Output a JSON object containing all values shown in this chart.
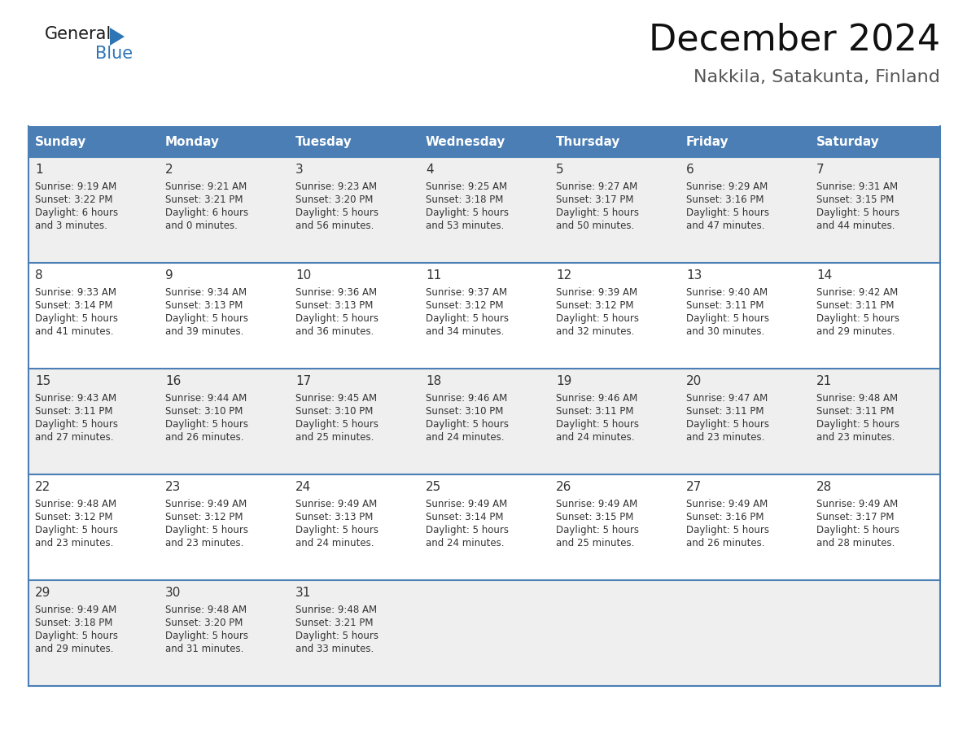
{
  "title": "December 2024",
  "subtitle": "Nakkila, Satakunta, Finland",
  "days_of_week": [
    "Sunday",
    "Monday",
    "Tuesday",
    "Wednesday",
    "Thursday",
    "Friday",
    "Saturday"
  ],
  "header_bg": "#4A7EB5",
  "header_text": "#FFFFFF",
  "row_bg_odd": "#EFEFEF",
  "row_bg_even": "#FFFFFF",
  "border_color": "#4A7EB5",
  "day_number_color": "#333333",
  "cell_text_color": "#333333",
  "calendar_data": [
    {
      "day": 1,
      "col": 0,
      "row": 0,
      "sunrise": "9:19 AM",
      "sunset": "3:22 PM",
      "daylight_h": "6 hours",
      "daylight_m": "and 3 minutes."
    },
    {
      "day": 2,
      "col": 1,
      "row": 0,
      "sunrise": "9:21 AM",
      "sunset": "3:21 PM",
      "daylight_h": "6 hours",
      "daylight_m": "and 0 minutes."
    },
    {
      "day": 3,
      "col": 2,
      "row": 0,
      "sunrise": "9:23 AM",
      "sunset": "3:20 PM",
      "daylight_h": "5 hours",
      "daylight_m": "and 56 minutes."
    },
    {
      "day": 4,
      "col": 3,
      "row": 0,
      "sunrise": "9:25 AM",
      "sunset": "3:18 PM",
      "daylight_h": "5 hours",
      "daylight_m": "and 53 minutes."
    },
    {
      "day": 5,
      "col": 4,
      "row": 0,
      "sunrise": "9:27 AM",
      "sunset": "3:17 PM",
      "daylight_h": "5 hours",
      "daylight_m": "and 50 minutes."
    },
    {
      "day": 6,
      "col": 5,
      "row": 0,
      "sunrise": "9:29 AM",
      "sunset": "3:16 PM",
      "daylight_h": "5 hours",
      "daylight_m": "and 47 minutes."
    },
    {
      "day": 7,
      "col": 6,
      "row": 0,
      "sunrise": "9:31 AM",
      "sunset": "3:15 PM",
      "daylight_h": "5 hours",
      "daylight_m": "and 44 minutes."
    },
    {
      "day": 8,
      "col": 0,
      "row": 1,
      "sunrise": "9:33 AM",
      "sunset": "3:14 PM",
      "daylight_h": "5 hours",
      "daylight_m": "and 41 minutes."
    },
    {
      "day": 9,
      "col": 1,
      "row": 1,
      "sunrise": "9:34 AM",
      "sunset": "3:13 PM",
      "daylight_h": "5 hours",
      "daylight_m": "and 39 minutes."
    },
    {
      "day": 10,
      "col": 2,
      "row": 1,
      "sunrise": "9:36 AM",
      "sunset": "3:13 PM",
      "daylight_h": "5 hours",
      "daylight_m": "and 36 minutes."
    },
    {
      "day": 11,
      "col": 3,
      "row": 1,
      "sunrise": "9:37 AM",
      "sunset": "3:12 PM",
      "daylight_h": "5 hours",
      "daylight_m": "and 34 minutes."
    },
    {
      "day": 12,
      "col": 4,
      "row": 1,
      "sunrise": "9:39 AM",
      "sunset": "3:12 PM",
      "daylight_h": "5 hours",
      "daylight_m": "and 32 minutes."
    },
    {
      "day": 13,
      "col": 5,
      "row": 1,
      "sunrise": "9:40 AM",
      "sunset": "3:11 PM",
      "daylight_h": "5 hours",
      "daylight_m": "and 30 minutes."
    },
    {
      "day": 14,
      "col": 6,
      "row": 1,
      "sunrise": "9:42 AM",
      "sunset": "3:11 PM",
      "daylight_h": "5 hours",
      "daylight_m": "and 29 minutes."
    },
    {
      "day": 15,
      "col": 0,
      "row": 2,
      "sunrise": "9:43 AM",
      "sunset": "3:11 PM",
      "daylight_h": "5 hours",
      "daylight_m": "and 27 minutes."
    },
    {
      "day": 16,
      "col": 1,
      "row": 2,
      "sunrise": "9:44 AM",
      "sunset": "3:10 PM",
      "daylight_h": "5 hours",
      "daylight_m": "and 26 minutes."
    },
    {
      "day": 17,
      "col": 2,
      "row": 2,
      "sunrise": "9:45 AM",
      "sunset": "3:10 PM",
      "daylight_h": "5 hours",
      "daylight_m": "and 25 minutes."
    },
    {
      "day": 18,
      "col": 3,
      "row": 2,
      "sunrise": "9:46 AM",
      "sunset": "3:10 PM",
      "daylight_h": "5 hours",
      "daylight_m": "and 24 minutes."
    },
    {
      "day": 19,
      "col": 4,
      "row": 2,
      "sunrise": "9:46 AM",
      "sunset": "3:11 PM",
      "daylight_h": "5 hours",
      "daylight_m": "and 24 minutes."
    },
    {
      "day": 20,
      "col": 5,
      "row": 2,
      "sunrise": "9:47 AM",
      "sunset": "3:11 PM",
      "daylight_h": "5 hours",
      "daylight_m": "and 23 minutes."
    },
    {
      "day": 21,
      "col": 6,
      "row": 2,
      "sunrise": "9:48 AM",
      "sunset": "3:11 PM",
      "daylight_h": "5 hours",
      "daylight_m": "and 23 minutes."
    },
    {
      "day": 22,
      "col": 0,
      "row": 3,
      "sunrise": "9:48 AM",
      "sunset": "3:12 PM",
      "daylight_h": "5 hours",
      "daylight_m": "and 23 minutes."
    },
    {
      "day": 23,
      "col": 1,
      "row": 3,
      "sunrise": "9:49 AM",
      "sunset": "3:12 PM",
      "daylight_h": "5 hours",
      "daylight_m": "and 23 minutes."
    },
    {
      "day": 24,
      "col": 2,
      "row": 3,
      "sunrise": "9:49 AM",
      "sunset": "3:13 PM",
      "daylight_h": "5 hours",
      "daylight_m": "and 24 minutes."
    },
    {
      "day": 25,
      "col": 3,
      "row": 3,
      "sunrise": "9:49 AM",
      "sunset": "3:14 PM",
      "daylight_h": "5 hours",
      "daylight_m": "and 24 minutes."
    },
    {
      "day": 26,
      "col": 4,
      "row": 3,
      "sunrise": "9:49 AM",
      "sunset": "3:15 PM",
      "daylight_h": "5 hours",
      "daylight_m": "and 25 minutes."
    },
    {
      "day": 27,
      "col": 5,
      "row": 3,
      "sunrise": "9:49 AM",
      "sunset": "3:16 PM",
      "daylight_h": "5 hours",
      "daylight_m": "and 26 minutes."
    },
    {
      "day": 28,
      "col": 6,
      "row": 3,
      "sunrise": "9:49 AM",
      "sunset": "3:17 PM",
      "daylight_h": "5 hours",
      "daylight_m": "and 28 minutes."
    },
    {
      "day": 29,
      "col": 0,
      "row": 4,
      "sunrise": "9:49 AM",
      "sunset": "3:18 PM",
      "daylight_h": "5 hours",
      "daylight_m": "and 29 minutes."
    },
    {
      "day": 30,
      "col": 1,
      "row": 4,
      "sunrise": "9:48 AM",
      "sunset": "3:20 PM",
      "daylight_h": "5 hours",
      "daylight_m": "and 31 minutes."
    },
    {
      "day": 31,
      "col": 2,
      "row": 4,
      "sunrise": "9:48 AM",
      "sunset": "3:21 PM",
      "daylight_h": "5 hours",
      "daylight_m": "and 33 minutes."
    }
  ],
  "num_rows": 5,
  "num_cols": 7,
  "logo_text_general": "General",
  "logo_text_blue": "Blue",
  "logo_color_general": "#1a1a1a",
  "logo_color_blue": "#2E75B6",
  "logo_triangle_color": "#2E75B6",
  "title_fontsize": 32,
  "subtitle_fontsize": 16,
  "header_fontsize": 11,
  "day_num_fontsize": 11,
  "cell_fontsize": 8.5
}
